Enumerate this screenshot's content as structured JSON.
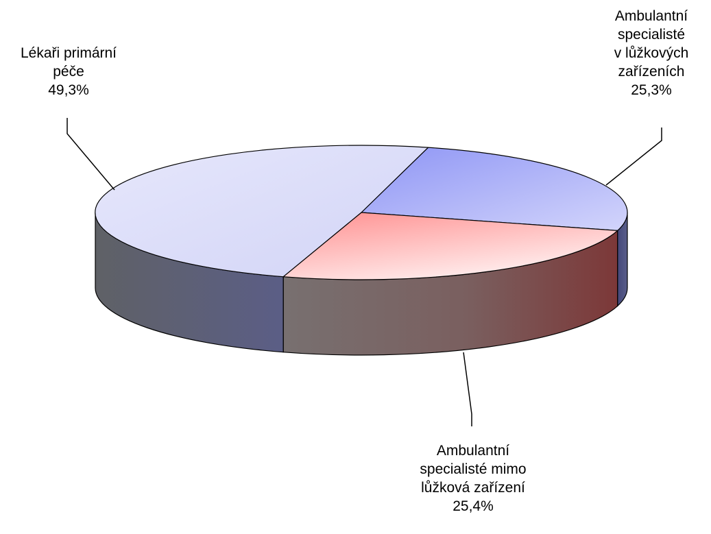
{
  "chart_data": {
    "type": "pie",
    "title": "",
    "series": [
      {
        "values": [
          49.3,
          25.3,
          25.4
        ],
        "labels": [
          "Lékaři primární péče",
          "Ambulantní specialisté v lůžkových zařízeních",
          "Ambulantní specialisté mimo lůžková zařízení"
        ]
      }
    ],
    "slices": [
      {
        "label_lines": [
          "Lékaři primární",
          "péče"
        ],
        "value": 49.3,
        "value_text": "49,3%",
        "color_top": "#d8daf8",
        "color_side": "#5c5f78"
      },
      {
        "label_lines": [
          "Ambulantní",
          "specialisté",
          "v lůžkových",
          "zařízeních"
        ],
        "value": 25.3,
        "value_text": "25,3%",
        "color_top": "#a3a8f6",
        "color_side": "#4d4f73"
      },
      {
        "label_lines": [
          "Ambulantní",
          "specialisté mimo",
          "lůžková zařízení"
        ],
        "value": 25.4,
        "value_text": "25,4%",
        "color_top": "#ffa8a8",
        "color_side": "#7e4c4c"
      }
    ],
    "style": "3d-pie",
    "legend": "none"
  }
}
